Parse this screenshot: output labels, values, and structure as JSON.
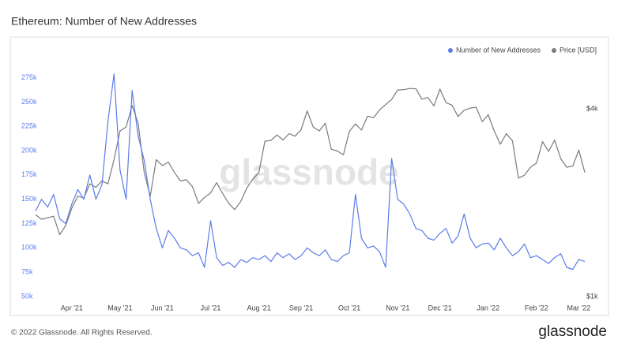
{
  "chart_data": {
    "type": "line",
    "title": "Ethereum: Number of New Addresses",
    "watermark": "glassnode",
    "footer": "© 2022 Glassnode. All Rights Reserved.",
    "logo": "glassnode",
    "categories": [
      null,
      null,
      null,
      null,
      null,
      null,
      "Apr '21",
      null,
      null,
      null,
      null,
      null,
      null,
      null,
      "May '21",
      null,
      null,
      null,
      null,
      null,
      null,
      "Jun '21",
      null,
      null,
      null,
      null,
      null,
      null,
      null,
      "Jul '21",
      null,
      null,
      null,
      null,
      null,
      null,
      null,
      "Aug '21",
      null,
      null,
      null,
      null,
      null,
      null,
      "Sep '21",
      null,
      null,
      null,
      null,
      null,
      null,
      null,
      "Oct '21",
      null,
      null,
      null,
      null,
      null,
      null,
      null,
      "Nov '21",
      null,
      null,
      null,
      null,
      null,
      null,
      "Dec '21",
      null,
      null,
      null,
      null,
      null,
      null,
      null,
      "Jan '22",
      null,
      null,
      null,
      null,
      null,
      null,
      null,
      "Feb '22",
      null,
      null,
      null,
      null,
      null,
      null,
      "Mar '22",
      null
    ],
    "series": [
      {
        "name": "Number of New Addresses",
        "color": "#5b7de8",
        "values": [
          138000,
          150000,
          142000,
          155000,
          130000,
          125000,
          145000,
          160000,
          150000,
          175000,
          150000,
          165000,
          230000,
          279000,
          180000,
          150000,
          262000,
          215000,
          190000,
          150000,
          120000,
          100000,
          118000,
          110000,
          100000,
          98000,
          92000,
          95000,
          80000,
          128000,
          90000,
          82000,
          85000,
          80000,
          88000,
          85000,
          90000,
          88000,
          92000,
          86000,
          95000,
          90000,
          94000,
          88000,
          92000,
          100000,
          95000,
          92000,
          98000,
          88000,
          86000,
          92000,
          95000,
          155000,
          110000,
          100000,
          102000,
          96000,
          80000,
          192000,
          150000,
          145000,
          135000,
          120000,
          118000,
          110000,
          108000,
          115000,
          120000,
          105000,
          112000,
          135000,
          110000,
          100000,
          104000,
          105000,
          98000,
          110000,
          100000,
          92000,
          96000,
          104000,
          90000,
          92000,
          88000,
          84000,
          90000,
          94000,
          80000,
          78000,
          88000,
          86000
        ]
      },
      {
        "name": "Price [USD]",
        "color": "#7a7a7a",
        "axis": "y2",
        "values": [
          1830,
          1770,
          1790,
          1810,
          1580,
          1690,
          1920,
          2100,
          2070,
          2300,
          2240,
          2350,
          2300,
          2750,
          3400,
          3500,
          4100,
          3600,
          2500,
          2100,
          2750,
          2630,
          2700,
          2500,
          2350,
          2370,
          2250,
          1990,
          2080,
          2150,
          2320,
          2140,
          1990,
          1900,
          2020,
          2230,
          2380,
          2500,
          3150,
          3170,
          3300,
          3180,
          3330,
          3270,
          3430,
          3940,
          3500,
          3400,
          3600,
          2970,
          2930,
          2850,
          3390,
          3580,
          3420,
          3790,
          3750,
          3970,
          4130,
          4290,
          4600,
          4610,
          4650,
          4640,
          4300,
          4350,
          4090,
          4630,
          4190,
          4110,
          3780,
          3960,
          4020,
          4050,
          3640,
          3830,
          3400,
          3080,
          3330,
          3160,
          2400,
          2450,
          2600,
          2680,
          3140,
          2920,
          3180,
          2770,
          2600,
          2620,
          2950,
          2500
        ]
      }
    ],
    "ylim": [
      50000,
      286000
    ],
    "yticks": [
      {
        "value": 50000,
        "label": "50k"
      },
      {
        "value": 75000,
        "label": "75k"
      },
      {
        "value": 100000,
        "label": "100k"
      },
      {
        "value": 125000,
        "label": "125k"
      },
      {
        "value": 150000,
        "label": "150k"
      },
      {
        "value": 175000,
        "label": "175k"
      },
      {
        "value": 200000,
        "label": "200k"
      },
      {
        "value": 225000,
        "label": "225k"
      },
      {
        "value": 250000,
        "label": "250k"
      },
      {
        "value": 275000,
        "label": "275k"
      }
    ],
    "y2lim": [
      1000,
      5450
    ],
    "y2scale": "log",
    "y2ticks": [
      {
        "value": 1000,
        "label": "$1k"
      },
      {
        "value": 4000,
        "label": "$4k"
      }
    ],
    "legend": "top-right",
    "grid": false
  }
}
